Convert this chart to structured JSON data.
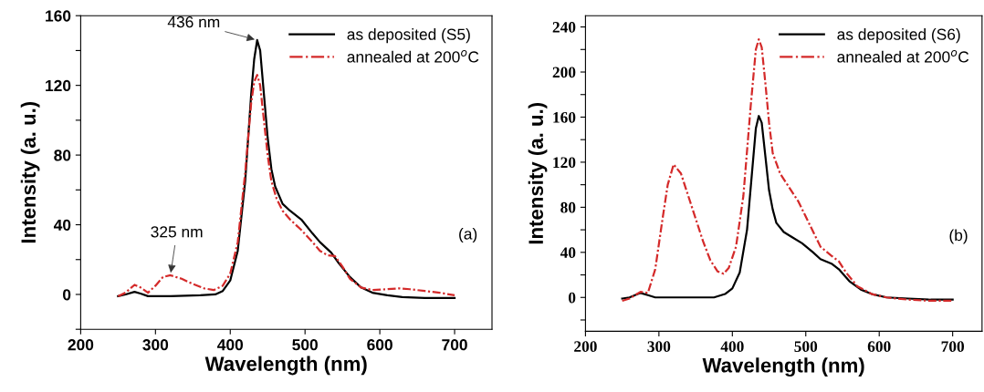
{
  "chart_data": [
    {
      "type": "line",
      "xlabel": "Wavelength (nm)",
      "ylabel": "Intensity (a. u.)",
      "xlim": [
        200,
        750
      ],
      "xticks": [
        200,
        300,
        400,
        500,
        600,
        700
      ],
      "ylim": [
        -20,
        160
      ],
      "yticks": [
        {
          "value": -20,
          "label": null
        },
        0,
        {
          "value": 20,
          "label": null
        },
        40,
        {
          "value": 60,
          "label": null
        },
        80,
        {
          "value": 100,
          "label": null
        },
        120,
        {
          "value": 140,
          "label": null
        },
        160
      ],
      "legend": "top right",
      "grid": false,
      "annotations": [
        {
          "text": "436 nm",
          "x": 436,
          "y": 146
        },
        {
          "text": "325 nm",
          "x": 320,
          "y": 11
        },
        "(a)"
      ],
      "series": [
        {
          "name": "as deposited (S5)",
          "color": "#000000",
          "line_style": "solid",
          "x": [
            250,
            260,
            272,
            280,
            290,
            320,
            360,
            380,
            390,
            400,
            410,
            420,
            428,
            432,
            436,
            440,
            445,
            450,
            455,
            460,
            470,
            480,
            495,
            510,
            520,
            535,
            545,
            560,
            575,
            590,
            610,
            630,
            660,
            700
          ],
          "values": [
            -1,
            0,
            1.5,
            0.5,
            -1,
            -1,
            -0.5,
            0,
            2,
            8,
            25,
            65,
            115,
            135,
            146,
            140,
            115,
            90,
            72,
            62,
            52,
            48,
            43,
            35,
            30,
            24,
            18,
            10,
            4,
            1,
            -0.5,
            -1.5,
            -2,
            -2
          ]
        },
        {
          "name": "annealed at 200$^{o}$C",
          "color": "#d42a2a",
          "line_style": "dashdot",
          "x": [
            250,
            260,
            272,
            280,
            290,
            300,
            310,
            320,
            335,
            350,
            365,
            378,
            390,
            400,
            410,
            420,
            428,
            432,
            436,
            440,
            445,
            450,
            455,
            462,
            470,
            480,
            495,
            510,
            520,
            530,
            540,
            550,
            560,
            575,
            590,
            610,
            625,
            640,
            660,
            680,
            700
          ],
          "values": [
            -1,
            1,
            5.5,
            4,
            1,
            5,
            10,
            11,
            9,
            6,
            3.5,
            2.5,
            5,
            12,
            30,
            70,
            110,
            122,
            126,
            120,
            100,
            80,
            65,
            55,
            48,
            43,
            37,
            30,
            25,
            22.5,
            22,
            16,
            9,
            4,
            2.5,
            3,
            3.5,
            3,
            2,
            1,
            -0.5
          ]
        }
      ]
    },
    {
      "type": "line",
      "xlabel": "Wavelength (nm)",
      "ylabel": "Intensity (a. u.)",
      "xlim": [
        200,
        740
      ],
      "xticks": [
        200,
        300,
        400,
        500,
        600,
        700
      ],
      "ylim": [
        -30,
        250
      ],
      "yticks": [
        {
          "value": -20,
          "label": null
        },
        0,
        {
          "value": 20,
          "label": null
        },
        40,
        {
          "value": 60,
          "label": null
        },
        80,
        {
          "value": 100,
          "label": null
        },
        120,
        {
          "value": 140,
          "label": null
        },
        160,
        {
          "value": 180,
          "label": null
        },
        200,
        {
          "value": 220,
          "label": null
        },
        240
      ],
      "legend": "top right",
      "grid": false,
      "annotations": [
        "(b)"
      ],
      "series": [
        {
          "name": "as deposited (S6)",
          "color": "#000000",
          "line_style": "solid",
          "x": [
            250,
            260,
            275,
            285,
            295,
            320,
            360,
            375,
            390,
            400,
            410,
            420,
            428,
            432,
            436,
            440,
            445,
            450,
            455,
            460,
            470,
            480,
            495,
            510,
            520,
            535,
            545,
            560,
            575,
            590,
            610,
            640,
            670,
            700
          ],
          "values": [
            -1,
            0,
            4,
            2,
            0,
            0,
            0,
            0,
            3,
            8,
            22,
            60,
            120,
            150,
            161,
            155,
            125,
            95,
            78,
            66,
            58,
            54,
            48,
            40,
            34,
            30,
            25,
            14,
            7,
            3,
            0,
            -1,
            -2,
            -2
          ]
        },
        {
          "name": "annealed at 200$^{o}$C",
          "color": "#d42a2a",
          "line_style": "dashdot",
          "x": [
            250,
            260,
            275,
            285,
            295,
            305,
            312,
            320,
            330,
            340,
            350,
            360,
            370,
            380,
            388,
            395,
            405,
            415,
            425,
            432,
            436,
            440,
            445,
            450,
            455,
            465,
            475,
            490,
            505,
            520,
            535,
            545,
            555,
            570,
            590,
            610,
            640,
            670,
            700
          ],
          "values": [
            -3,
            -1,
            5,
            4,
            25,
            70,
            100,
            118,
            110,
            90,
            70,
            50,
            33,
            23,
            21,
            26,
            45,
            90,
            170,
            220,
            229,
            222,
            190,
            155,
            128,
            110,
            100,
            85,
            65,
            45,
            37,
            32,
            22,
            10,
            3,
            0,
            -2,
            -3,
            -3
          ]
        }
      ]
    }
  ]
}
